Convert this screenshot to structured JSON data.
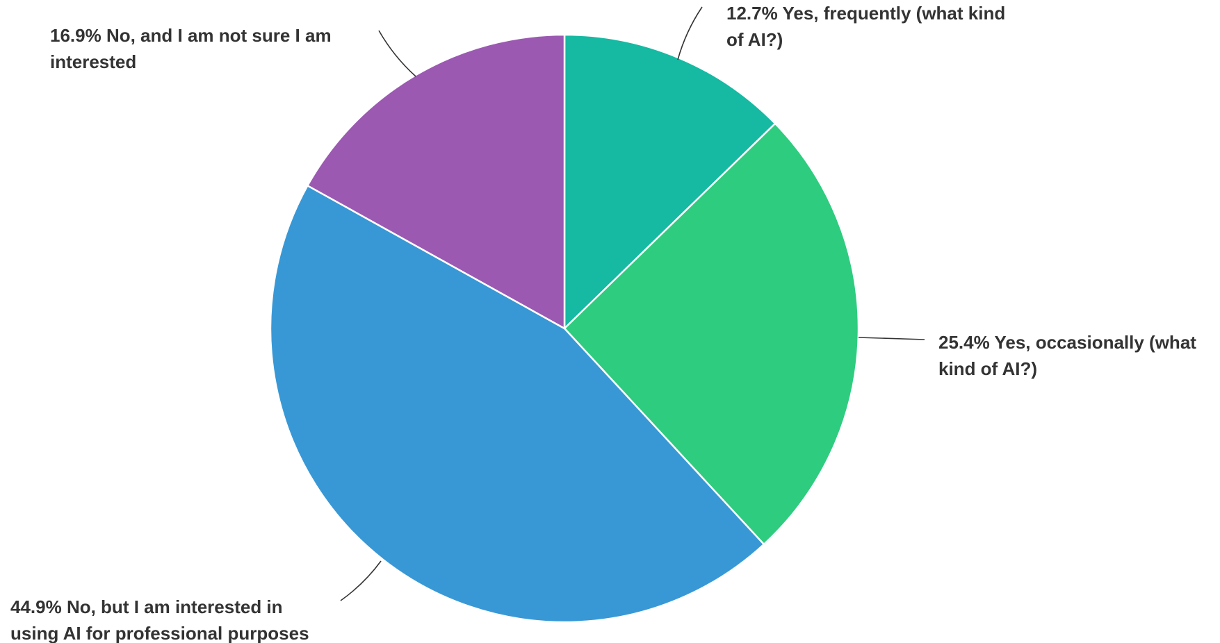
{
  "chart_data": {
    "type": "pie",
    "start": "top",
    "direction": "clockwise",
    "slices": [
      {
        "label": "Yes, frequently (what kind of AI?)",
        "value": 12.7,
        "display": "12.7%",
        "color": "#16B9A2",
        "lines": [
          "12.7% Yes, frequently (what kind",
          "of AI?)"
        ]
      },
      {
        "label": "Yes, occasionally (what kind of AI?)",
        "value": 25.4,
        "display": "25.4%",
        "color": "#2ECC7F",
        "lines": [
          "25.4% Yes, occasionally (what",
          "kind of AI?)"
        ]
      },
      {
        "label": "No, but I am interested in using AI for professional purposes",
        "value": 44.9,
        "display": "44.9%",
        "color": "#3898D6",
        "lines": [
          "44.9% No, but I am interested in",
          "using AI for professional purposes"
        ]
      },
      {
        "label": "No, and I am not sure I am interested",
        "value": 16.9,
        "display": "16.9%",
        "color": "#9B59B2",
        "lines": [
          "16.9% No, and I am not sure I am",
          "interested"
        ]
      }
    ]
  }
}
